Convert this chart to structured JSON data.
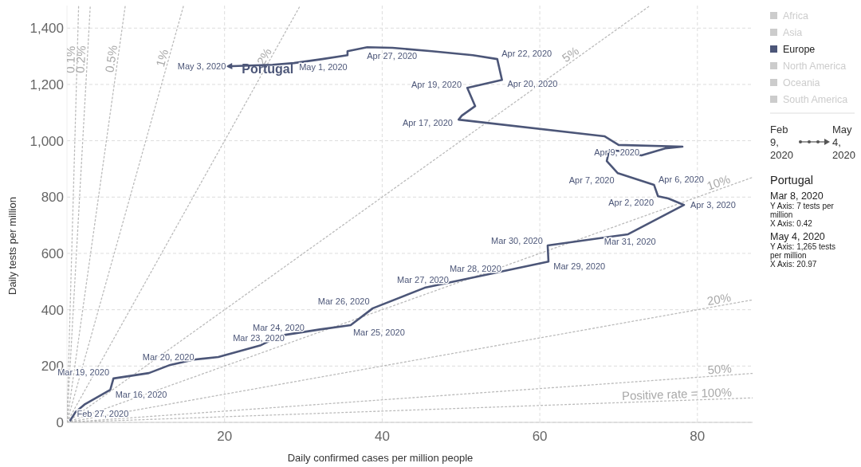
{
  "chart_data": [
    {
      "type": "line",
      "xlabel": "Daily confirmed cases per million people",
      "ylabel": "Daily tests per million",
      "xlim": [
        0,
        87
      ],
      "ylim": [
        0,
        1480
      ],
      "xticks": [
        20,
        40,
        60,
        80
      ],
      "yticks": [
        0,
        200,
        400,
        600,
        800,
        {
          "value": 1000,
          "label": "1,000"
        },
        {
          "value": 1200,
          "label": "1,200"
        },
        {
          "value": 1400,
          "label": "1,400"
        }
      ],
      "grid": true,
      "marker": "none",
      "series": [
        {
          "name": "0.1%",
          "color": "#bbbbbb",
          "line_style": "dotted",
          "x": [
            0,
            1.48
          ],
          "values": [
            0,
            1480
          ]
        },
        {
          "name": "0.2%",
          "color": "#bbbbbb",
          "line_style": "dotted",
          "x": [
            0,
            2.96
          ],
          "values": [
            0,
            1480
          ]
        },
        {
          "name": "0.5%",
          "color": "#bbbbbb",
          "line_style": "dotted",
          "x": [
            0,
            7.4
          ],
          "values": [
            0,
            1480
          ]
        },
        {
          "name": "1%",
          "color": "#bbbbbb",
          "line_style": "dotted",
          "x": [
            0,
            14.8
          ],
          "values": [
            0,
            1480
          ]
        },
        {
          "name": "2%",
          "color": "#bbbbbb",
          "line_style": "dotted",
          "x": [
            0,
            29.6
          ],
          "values": [
            0,
            1480
          ]
        },
        {
          "name": "5%",
          "color": "#bbbbbb",
          "line_style": "dotted",
          "x": [
            0,
            74
          ],
          "values": [
            0,
            1480
          ]
        },
        {
          "name": "10%",
          "color": "#bbbbbb",
          "line_style": "dotted",
          "x": [
            0,
            87
          ],
          "values": [
            0,
            870
          ]
        },
        {
          "name": "20%",
          "color": "#bbbbbb",
          "line_style": "dotted",
          "x": [
            0,
            87
          ],
          "values": [
            0,
            435
          ]
        },
        {
          "name": "50%",
          "color": "#bbbbbb",
          "line_style": "dotted",
          "x": [
            0,
            87
          ],
          "values": [
            0,
            174
          ]
        },
        {
          "name": "Positive rate = 100%",
          "color": "#bbbbbb",
          "line_style": "dotted",
          "x": [
            0,
            87
          ],
          "values": [
            0,
            87
          ]
        },
        {
          "name": "Portugal",
          "color": "#4c5678",
          "line_style": "solid",
          "x": [
            0.42,
            1.1,
            2.3,
            5.5,
            5.9,
            10.4,
            13.1,
            16.1,
            19.2,
            24.6,
            27.1,
            32.1,
            36,
            38.8,
            45.4,
            52,
            61.1,
            61,
            71.2,
            78.3,
            76.3,
            75,
            74.5,
            69.9,
            68.5,
            68.8,
            70.6,
            72.9,
            75.9,
            78.1,
            70,
            68.2,
            49.7,
            50.1,
            51.8,
            50.8,
            55.2,
            54.6,
            51.5,
            46.3,
            41.3,
            38.1,
            35.6,
            35.6,
            32.4,
            28.8,
            26.1,
            20.97
          ],
          "values": [
            7,
            37,
            65,
            116,
            156,
            175,
            204,
            223,
            232,
            274,
            308,
            330,
            345,
            405,
            478,
            517,
            571,
            628,
            668,
            772,
            795,
            803,
            843,
            885,
            928,
            967,
            962,
            948,
            973,
            979,
            985,
            1016,
            1075,
            1089,
            1123,
            1188,
            1216,
            1290,
            1304,
            1318,
            1330,
            1332,
            1318,
            1304,
            1290,
            1276,
            1270,
            1265
          ]
        }
      ],
      "annotations": [
        {
          "text": "Feb 27, 2020",
          "x": 0.42,
          "y": 7
        },
        {
          "text": "Mar 16, 2020",
          "x": 5.5,
          "y": 116
        },
        {
          "text": "Mar 19, 2020",
          "x": 5.9,
          "y": 156
        },
        {
          "text": "Mar 20, 2020",
          "x": 13.1,
          "y": 204
        },
        {
          "text": "Mar 23, 2020",
          "x": 24.6,
          "y": 274
        },
        {
          "text": "Mar 24, 2020",
          "x": 27.1,
          "y": 308
        },
        {
          "text": "Mar 25, 2020",
          "x": 36,
          "y": 345
        },
        {
          "text": "Mar 26, 2020",
          "x": 38.8,
          "y": 405
        },
        {
          "text": "Mar 27, 2020",
          "x": 45.4,
          "y": 478
        },
        {
          "text": "Mar 28, 2020",
          "x": 52,
          "y": 517
        },
        {
          "text": "Mar 29, 2020",
          "x": 61.1,
          "y": 571
        },
        {
          "text": "Mar 30, 2020",
          "x": 61,
          "y": 628
        },
        {
          "text": "Mar 31, 2020",
          "x": 71.2,
          "y": 668
        },
        {
          "text": "Apr 2, 2020",
          "x": 75,
          "y": 803
        },
        {
          "text": "Apr 3, 2020",
          "x": 78.3,
          "y": 772
        },
        {
          "text": "Apr 6, 2020",
          "x": 74.5,
          "y": 843
        },
        {
          "text": "Apr 7, 2020",
          "x": 69.9,
          "y": 885
        },
        {
          "text": "Apr 9, 2020",
          "x": 70,
          "y": 985
        },
        {
          "text": "Apr 17, 2020",
          "x": 49.7,
          "y": 1075
        },
        {
          "text": "Apr 19, 2020",
          "x": 50.8,
          "y": 1188
        },
        {
          "text": "Apr 20, 2020",
          "x": 55.2,
          "y": 1216
        },
        {
          "text": "Apr 22, 2020",
          "x": 54.6,
          "y": 1290
        },
        {
          "text": "Apr 27, 2020",
          "x": 41.3,
          "y": 1330
        },
        {
          "text": "May 1, 2020",
          "x": 32.4,
          "y": 1290
        },
        {
          "text": "May 3, 2020",
          "x": 20.97,
          "y": 1265
        }
      ]
    },
    {
      "type": "other",
      "categories": [
        "Africa",
        "Asia",
        "Europe",
        "North America",
        "Oceania",
        "South America"
      ],
      "colors": [
        "#cccccc",
        "#cccccc",
        "#4c5678",
        "#cccccc",
        "#cccccc",
        "#cccccc"
      ],
      "annotations": [
        "Feb 9, 2020",
        "May 4, 2020",
        "Portugal",
        "Mar 8, 2020",
        "Y Axis: 7 tests per million",
        "X Axis: 0.42",
        "May 4, 2020",
        "Y Axis: 1,265 tests per million",
        "X Axis: 20.97"
      ]
    }
  ]
}
